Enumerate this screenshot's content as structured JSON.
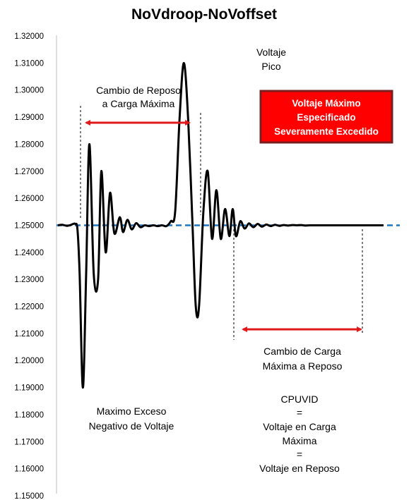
{
  "chart_data": {
    "type": "line",
    "title": "NoVdroop-NoVoffset",
    "xlabel": "",
    "ylabel": "",
    "ylim": [
      1.15,
      1.32
    ],
    "y_ticks": [
      "1.15000",
      "1.16000",
      "1.17000",
      "1.18000",
      "1.19000",
      "1.20000",
      "1.21000",
      "1.22000",
      "1.23000",
      "1.24000",
      "1.25000",
      "1.26000",
      "1.27000",
      "1.28000",
      "1.29000",
      "1.30000",
      "1.31000",
      "1.32000"
    ],
    "grid": false,
    "reference_line": {
      "value": 1.25,
      "color": "#1f77c4",
      "style": "dashed"
    },
    "series_color": "#000000",
    "series": [
      {
        "x": [
          0,
          4,
          8,
          11,
          14,
          16,
          18,
          20,
          23,
          26,
          29,
          33,
          37,
          40,
          44,
          48,
          52,
          57,
          60,
          64,
          68,
          72,
          76,
          80,
          84,
          88,
          92,
          96,
          100,
          104,
          108,
          112,
          116,
          120,
          124,
          127,
          130,
          134,
          138,
          142,
          146,
          150,
          154,
          158,
          161,
          164,
          168,
          172,
          176,
          180,
          184,
          188,
          192,
          196,
          200,
          204,
          208,
          212,
          216,
          220,
          224,
          228,
          232,
          236,
          240,
          244,
          248,
          252,
          256,
          260,
          264,
          268,
          272,
          276,
          280,
          284,
          288,
          292,
          296,
          300
        ],
        "y": [
          1.25,
          1.2502,
          1.2498,
          1.25,
          1.2505,
          1.2505,
          1.2485,
          1.232,
          1.19,
          1.232,
          1.28,
          1.232,
          1.23,
          1.27,
          1.24,
          1.262,
          1.247,
          1.253,
          1.2475,
          1.252,
          1.2485,
          1.2508,
          1.2493,
          1.25,
          1.2497,
          1.25,
          1.2497,
          1.25,
          1.2497,
          1.2515,
          1.255,
          1.289,
          1.31,
          1.289,
          1.25,
          1.22,
          1.22,
          1.255,
          1.27,
          1.245,
          1.263,
          1.245,
          1.256,
          1.246,
          1.256,
          1.246,
          1.2515,
          1.2488,
          1.2507,
          1.2493,
          1.2505,
          1.2495,
          1.2503,
          1.2497,
          1.2502,
          1.2498,
          1.2501,
          1.2499,
          1.2501,
          1.25,
          1.2501,
          1.2499,
          1.25,
          1.25,
          1.25,
          1.25,
          1.25,
          1.25,
          1.25,
          1.25,
          1.25,
          1.25,
          1.25,
          1.25,
          1.25,
          1.25,
          1.25,
          1.25,
          1.25,
          1.25
        ],
        "x_range": [
          0,
          300
        ]
      }
    ],
    "annotations": {
      "drop": {
        "line1": "Cambio de Reposo",
        "line2": "a Carga Máxima"
      },
      "peak": {
        "line1": "Voltaje",
        "line2": "Pico"
      },
      "spec_box": {
        "line1": "Voltaje Máximo",
        "line2": "Especificado",
        "line3": "Severamente Excedido",
        "bg": "#ff0000",
        "border": "#7a1f1f"
      },
      "undershoot": {
        "line1": "Maximo Exceso",
        "line2": "Negativo de Voltaje"
      },
      "release": {
        "line1": "Cambio de Carga",
        "line2": "Máxima a Reposo"
      },
      "cpuvid": {
        "line1": "CPUVID",
        "line2": "=",
        "line3": "Voltaje en Carga",
        "line4": "Máxima",
        "line5": "=",
        "line6": "Voltaje en Reposo"
      },
      "arrow_color": "#e0191b"
    }
  }
}
